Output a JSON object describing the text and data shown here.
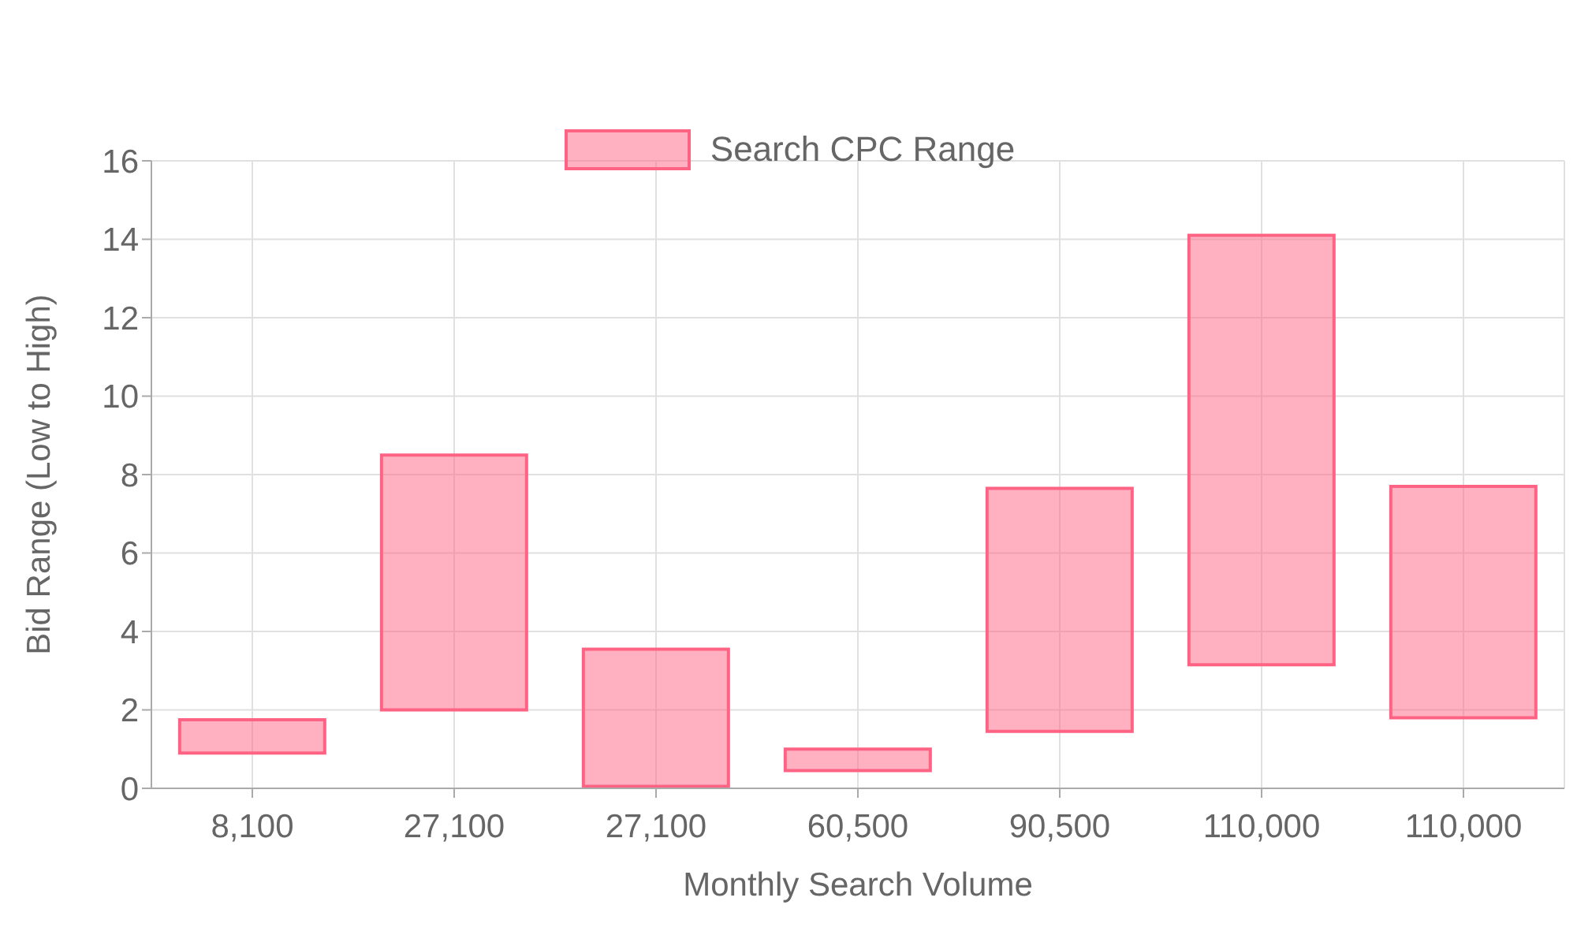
{
  "chart_data": {
    "type": "bar",
    "xlabel": "Monthly Search Volume",
    "ylabel": "Bid Range (Low to High)",
    "categories": [
      "8,100",
      "27,100",
      "27,100",
      "60,500",
      "90,500",
      "110,000",
      "110,000"
    ],
    "series": [
      {
        "name": "Search CPC Range",
        "color": "#ff6384",
        "base": [
          0.9,
          2.0,
          0.05,
          0.45,
          1.45,
          3.15,
          1.8
        ],
        "values": [
          0.85,
          6.5,
          3.5,
          0.55,
          6.2,
          10.95,
          5.9
        ]
      }
    ],
    "ylim": [
      0,
      16
    ],
    "yticks": [
      0,
      2,
      4,
      6,
      8,
      10,
      12,
      14,
      16
    ],
    "grid": true,
    "legend": "top"
  }
}
